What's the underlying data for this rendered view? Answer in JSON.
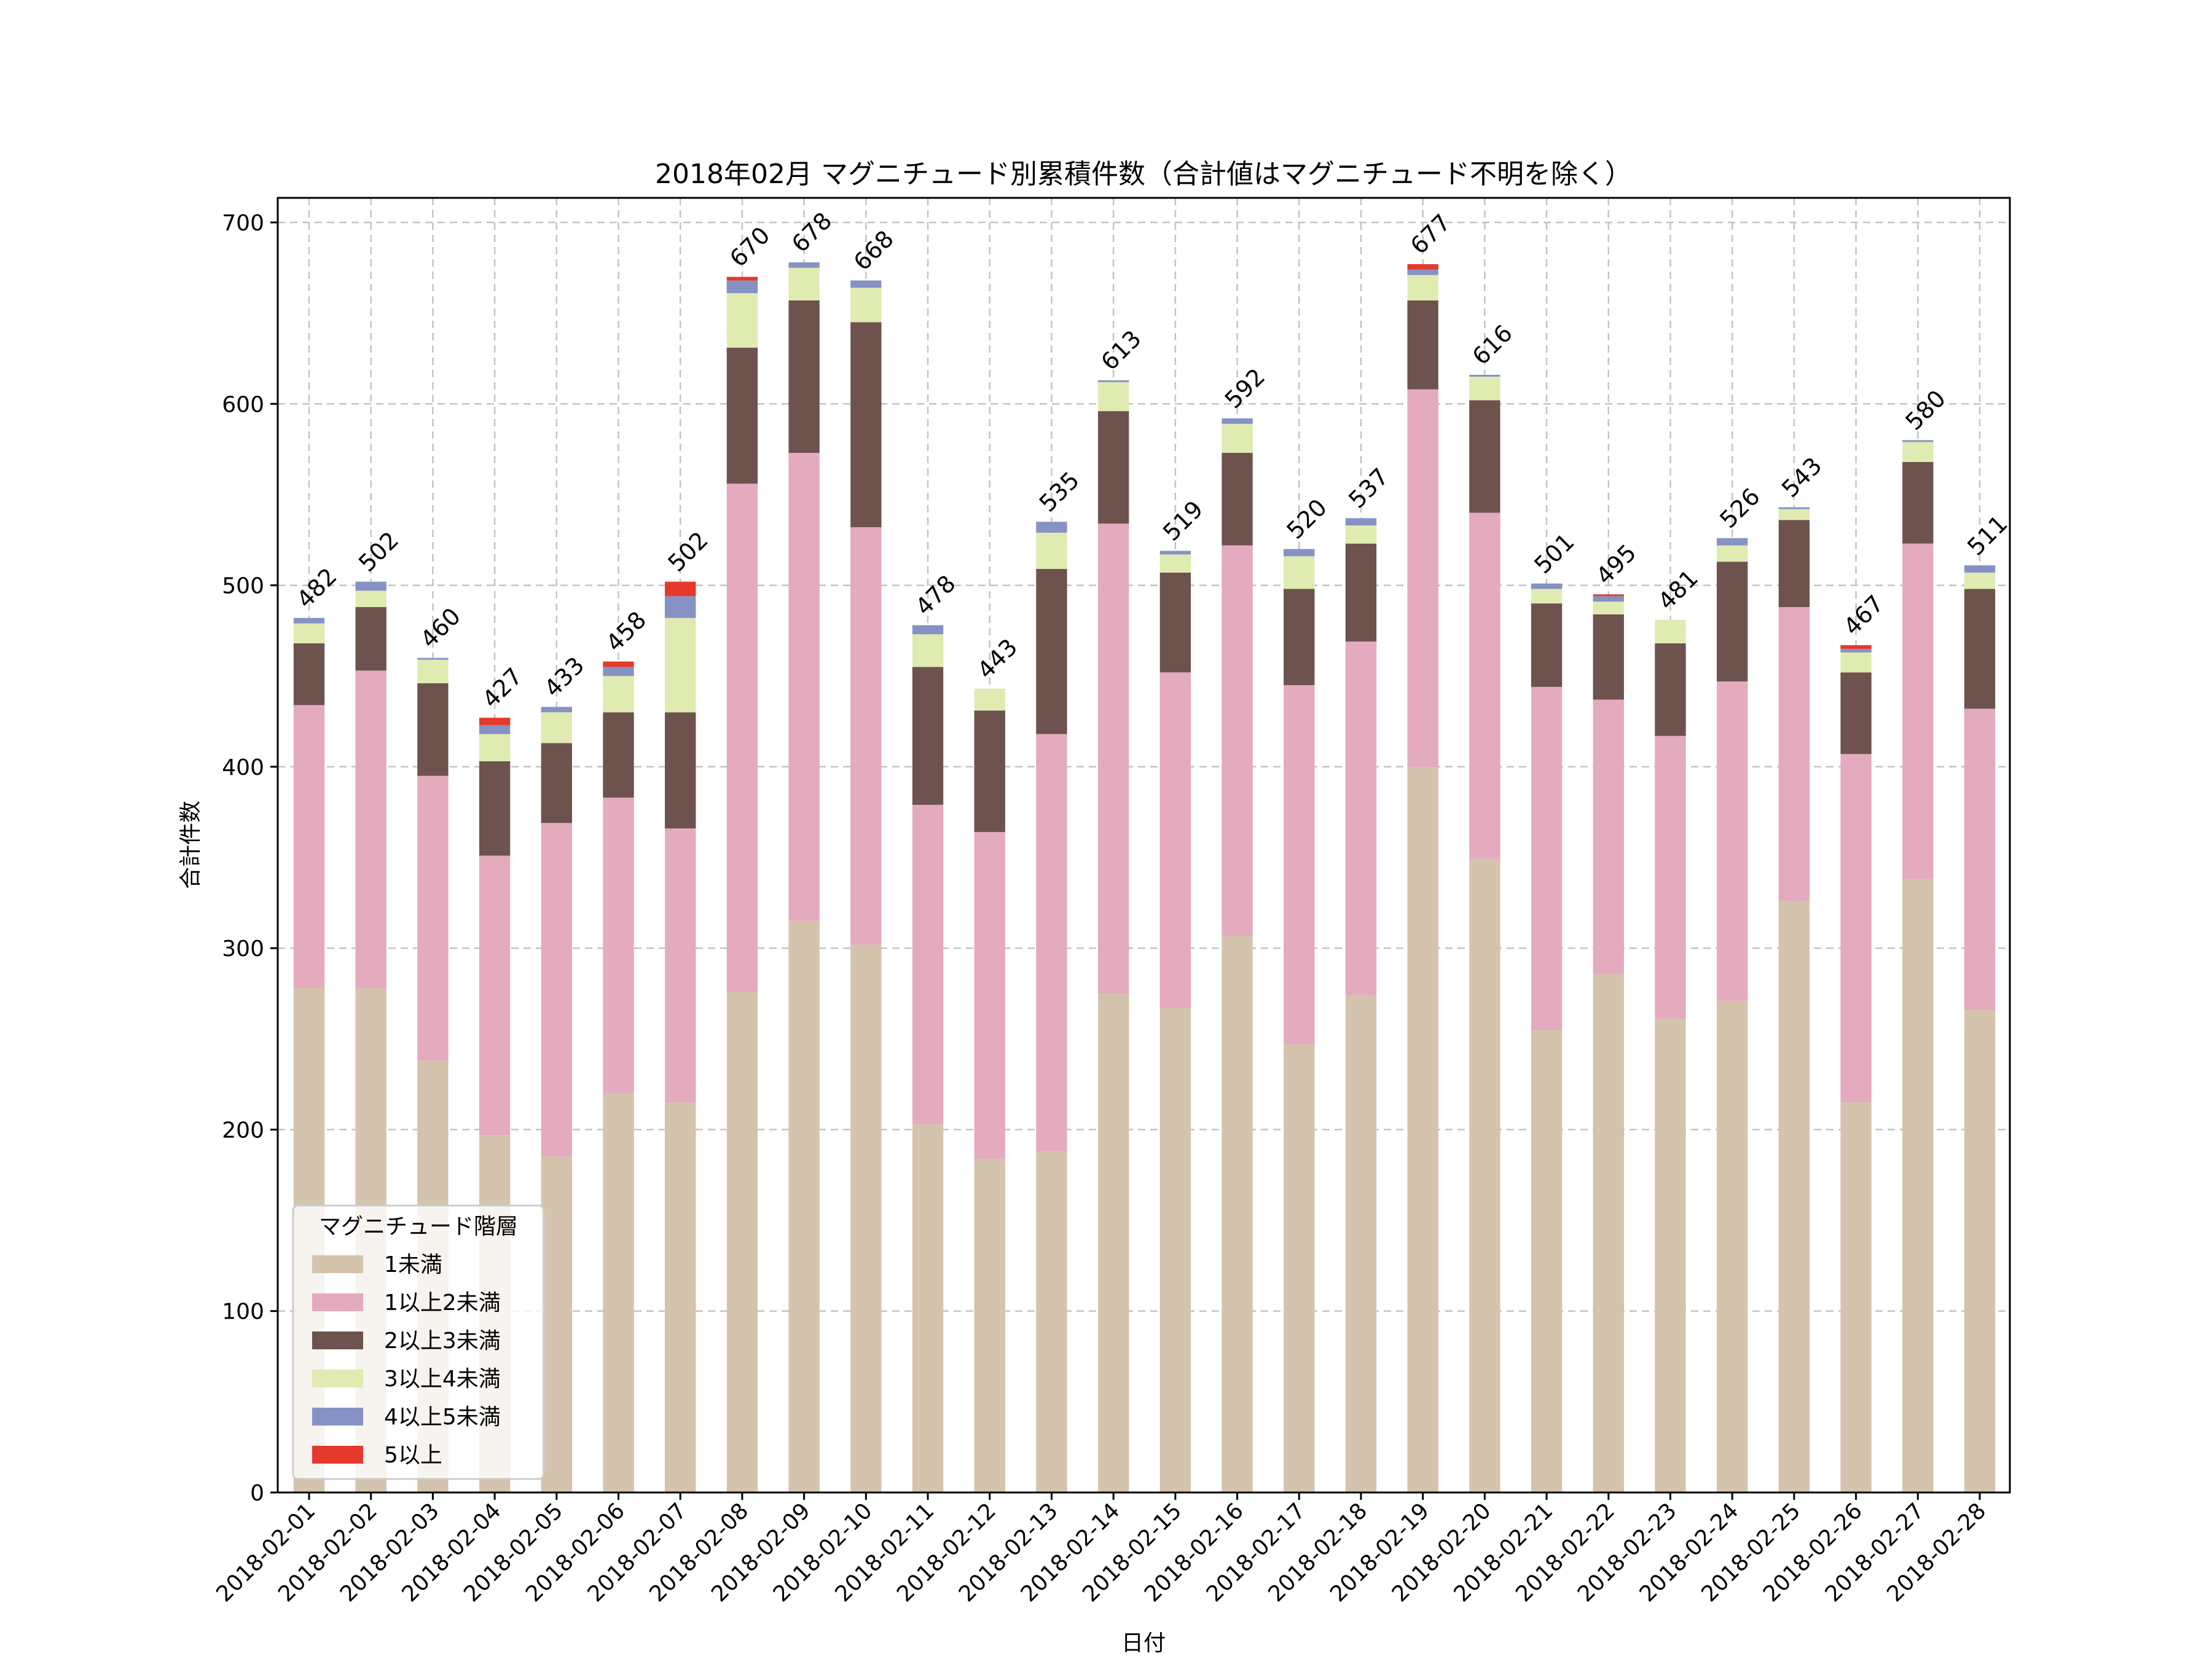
{
  "chart_data": {
    "type": "bar",
    "stacked": true,
    "title": "2018年02月 マグニチュード別累積件数（合計値はマグニチュード不明を除く）",
    "xlabel": "日付",
    "ylabel": "合計件数",
    "ylim": [
      0,
      700
    ],
    "yticks": [
      0,
      100,
      200,
      300,
      400,
      500,
      600,
      700
    ],
    "grid": true,
    "legend": {
      "title": "マグニチュード階層",
      "placement": "lower-left"
    },
    "categories": [
      "2018-02-01",
      "2018-02-02",
      "2018-02-03",
      "2018-02-04",
      "2018-02-05",
      "2018-02-06",
      "2018-02-07",
      "2018-02-08",
      "2018-02-09",
      "2018-02-10",
      "2018-02-11",
      "2018-02-12",
      "2018-02-13",
      "2018-02-14",
      "2018-02-15",
      "2018-02-16",
      "2018-02-17",
      "2018-02-18",
      "2018-02-19",
      "2018-02-20",
      "2018-02-21",
      "2018-02-22",
      "2018-02-23",
      "2018-02-24",
      "2018-02-25",
      "2018-02-26",
      "2018-02-27",
      "2018-02-28"
    ],
    "series": [
      {
        "name": "1未満",
        "color": "#d4c3ad",
        "values": [
          278,
          278,
          238,
          197,
          185,
          220,
          215,
          276,
          315,
          302,
          203,
          184,
          188,
          275,
          267,
          307,
          247,
          274,
          400,
          349,
          255,
          286,
          261,
          271,
          326,
          215,
          338,
          266
        ]
      },
      {
        "name": "1以上2未満",
        "color": "#e4aabd",
        "values": [
          156,
          175,
          157,
          154,
          184,
          163,
          151,
          280,
          258,
          230,
          176,
          180,
          230,
          259,
          185,
          215,
          198,
          195,
          208,
          191,
          189,
          151,
          156,
          176,
          162,
          192,
          185,
          166
        ]
      },
      {
        "name": "2以上3未満",
        "color": "#6d524d",
        "values": [
          34,
          35,
          51,
          52,
          44,
          47,
          64,
          75,
          84,
          113,
          76,
          67,
          91,
          62,
          55,
          51,
          53,
          54,
          49,
          62,
          46,
          47,
          51,
          66,
          48,
          45,
          45,
          66
        ]
      },
      {
        "name": "3以上4未満",
        "color": "#e0ebb1",
        "values": [
          11,
          9,
          13,
          15,
          17,
          20,
          52,
          30,
          18,
          19,
          18,
          12,
          20,
          16,
          10,
          16,
          18,
          10,
          14,
          13,
          8,
          7,
          13,
          9,
          6,
          11,
          11,
          9
        ]
      },
      {
        "name": "4以上5未満",
        "color": "#8592c3",
        "values": [
          3,
          5,
          1,
          5,
          3,
          5,
          12,
          7,
          3,
          4,
          5,
          0,
          6,
          1,
          2,
          3,
          4,
          4,
          3,
          1,
          3,
          3,
          0,
          4,
          1,
          2,
          1,
          4
        ]
      },
      {
        "name": "5以上",
        "color": "#e5392b",
        "values": [
          0,
          0,
          0,
          4,
          0,
          3,
          8,
          2,
          0,
          0,
          0,
          0,
          0,
          0,
          0,
          0,
          0,
          0,
          3,
          0,
          0,
          1,
          0,
          0,
          0,
          2,
          0,
          0
        ]
      }
    ],
    "totals": [
      482,
      502,
      460,
      427,
      433,
      458,
      502,
      670,
      678,
      668,
      478,
      443,
      535,
      613,
      519,
      592,
      520,
      537,
      677,
      616,
      501,
      495,
      481,
      526,
      543,
      467,
      580,
      511
    ]
  }
}
